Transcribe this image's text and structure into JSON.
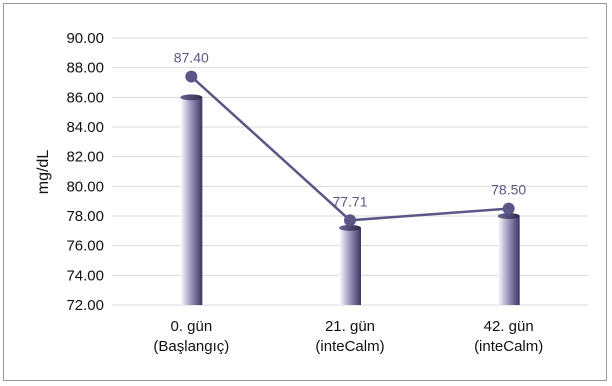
{
  "chart_data": {
    "type": "bar",
    "ylabel": "mg/dL",
    "ylim": [
      72,
      90
    ],
    "ytick_step": 2,
    "ytick_labels": [
      "72.00",
      "74.00",
      "76.00",
      "78.00",
      "80.00",
      "82.00",
      "84.00",
      "86.00",
      "88.00",
      "90.00"
    ],
    "grid": true,
    "categories": [
      [
        "0. gün",
        "(Başlangıç)"
      ],
      [
        "21. gün",
        "(inteCalm)"
      ],
      [
        "42. gün",
        "(inteCalm)"
      ]
    ],
    "bar_values": [
      86.0,
      77.2,
      78.0
    ],
    "line_values": [
      87.4,
      77.71,
      78.5
    ],
    "line_labels": [
      "87.40",
      "77.71",
      "78.50"
    ],
    "colors": {
      "bar_dark": "#3b3560",
      "bar_light": "#ffffff",
      "line": "#5a5688",
      "marker": "#5a5688",
      "grid": "#d9d9d9"
    }
  }
}
